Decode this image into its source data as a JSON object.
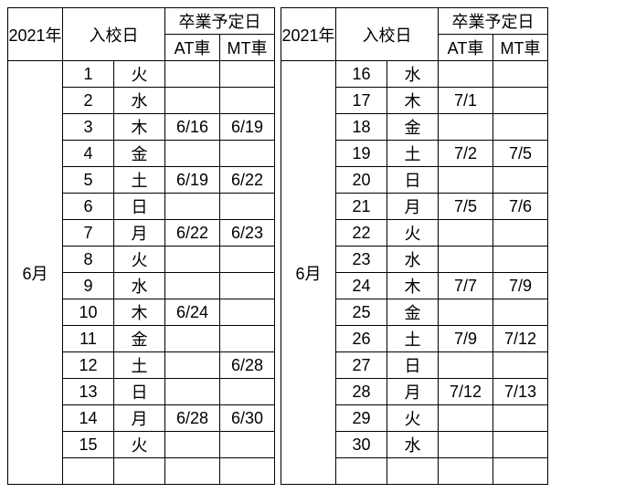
{
  "year_label": "2021年",
  "enroll_header": "入校日",
  "grad_header": "卒業予定日",
  "at_header": "AT車",
  "mt_header": "MT車",
  "month_label": "6月",
  "colors": {
    "border": "#000000",
    "bg": "#ffffff",
    "text": "#000000"
  },
  "font_size": 18,
  "left": {
    "rows": [
      {
        "d": "1",
        "w": "火",
        "at": "",
        "mt": ""
      },
      {
        "d": "2",
        "w": "水",
        "at": "",
        "mt": ""
      },
      {
        "d": "3",
        "w": "木",
        "at": "6/16",
        "mt": "6/19"
      },
      {
        "d": "4",
        "w": "金",
        "at": "",
        "mt": ""
      },
      {
        "d": "5",
        "w": "土",
        "at": "6/19",
        "mt": "6/22"
      },
      {
        "d": "6",
        "w": "日",
        "at": "",
        "mt": ""
      },
      {
        "d": "7",
        "w": "月",
        "at": "6/22",
        "mt": "6/23"
      },
      {
        "d": "8",
        "w": "火",
        "at": "",
        "mt": ""
      },
      {
        "d": "9",
        "w": "水",
        "at": "",
        "mt": ""
      },
      {
        "d": "10",
        "w": "木",
        "at": "6/24",
        "mt": ""
      },
      {
        "d": "11",
        "w": "金",
        "at": "",
        "mt": ""
      },
      {
        "d": "12",
        "w": "土",
        "at": "",
        "mt": "6/28"
      },
      {
        "d": "13",
        "w": "日",
        "at": "",
        "mt": ""
      },
      {
        "d": "14",
        "w": "月",
        "at": "6/28",
        "mt": "6/30"
      },
      {
        "d": "15",
        "w": "火",
        "at": "",
        "mt": ""
      }
    ],
    "blank_row": {
      "d": "",
      "w": "",
      "at": "",
      "mt": ""
    }
  },
  "right": {
    "rows": [
      {
        "d": "16",
        "w": "水",
        "at": "",
        "mt": ""
      },
      {
        "d": "17",
        "w": "木",
        "at": "7/1",
        "mt": ""
      },
      {
        "d": "18",
        "w": "金",
        "at": "",
        "mt": ""
      },
      {
        "d": "19",
        "w": "土",
        "at": "7/2",
        "mt": "7/5"
      },
      {
        "d": "20",
        "w": "日",
        "at": "",
        "mt": ""
      },
      {
        "d": "21",
        "w": "月",
        "at": "7/5",
        "mt": "7/6"
      },
      {
        "d": "22",
        "w": "火",
        "at": "",
        "mt": ""
      },
      {
        "d": "23",
        "w": "水",
        "at": "",
        "mt": ""
      },
      {
        "d": "24",
        "w": "木",
        "at": "7/7",
        "mt": "7/9"
      },
      {
        "d": "25",
        "w": "金",
        "at": "",
        "mt": ""
      },
      {
        "d": "26",
        "w": "土",
        "at": "7/9",
        "mt": "7/12"
      },
      {
        "d": "27",
        "w": "日",
        "at": "",
        "mt": ""
      },
      {
        "d": "28",
        "w": "月",
        "at": "7/12",
        "mt": "7/13"
      },
      {
        "d": "29",
        "w": "火",
        "at": "",
        "mt": ""
      },
      {
        "d": "30",
        "w": "水",
        "at": "",
        "mt": ""
      }
    ],
    "blank_row": {
      "d": "",
      "w": "",
      "at": "",
      "mt": ""
    }
  }
}
